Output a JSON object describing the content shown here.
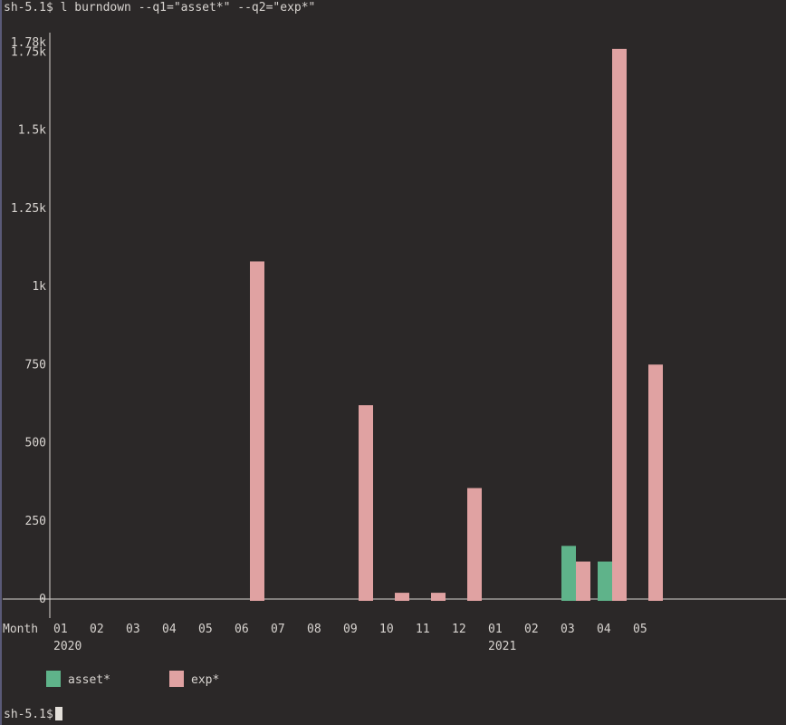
{
  "terminal": {
    "command_line": "sh-5.1$ l burndown --q1=\"asset*\" --q2=\"exp*\"",
    "prompt": "sh-5.1$"
  },
  "chart_data": {
    "type": "bar",
    "xlabel": "Month",
    "categories": [
      "01",
      "02",
      "03",
      "04",
      "05",
      "06",
      "07",
      "08",
      "09",
      "10",
      "11",
      "12",
      "01",
      "02",
      "03",
      "04",
      "05"
    ],
    "year_labels": [
      {
        "index": 0,
        "label": "2020"
      },
      {
        "index": 12,
        "label": "2021"
      }
    ],
    "series": [
      {
        "name": "asset*",
        "color": "#5fb38a",
        "values": [
          0,
          0,
          0,
          0,
          0,
          0,
          0,
          0,
          0,
          0,
          0,
          0,
          0,
          0,
          170,
          120,
          0
        ]
      },
      {
        "name": "exp*",
        "color": "#e0a2a2",
        "values": [
          0,
          0,
          0,
          0,
          0,
          1080,
          0,
          0,
          620,
          20,
          20,
          355,
          0,
          0,
          120,
          1760,
          750
        ]
      }
    ],
    "yticks": [
      {
        "value": 0,
        "label": "0"
      },
      {
        "value": 250,
        "label": "250"
      },
      {
        "value": 500,
        "label": "500"
      },
      {
        "value": 750,
        "label": "750"
      },
      {
        "value": 1000,
        "label": "1k"
      },
      {
        "value": 1250,
        "label": "1.25k"
      },
      {
        "value": 1500,
        "label": "1.5k"
      },
      {
        "value": 1750,
        "label": "1.75k"
      },
      {
        "value": 1780,
        "label": "1.78k"
      }
    ],
    "ylim": [
      0,
      1780
    ],
    "legend_position": "bottom-left"
  }
}
